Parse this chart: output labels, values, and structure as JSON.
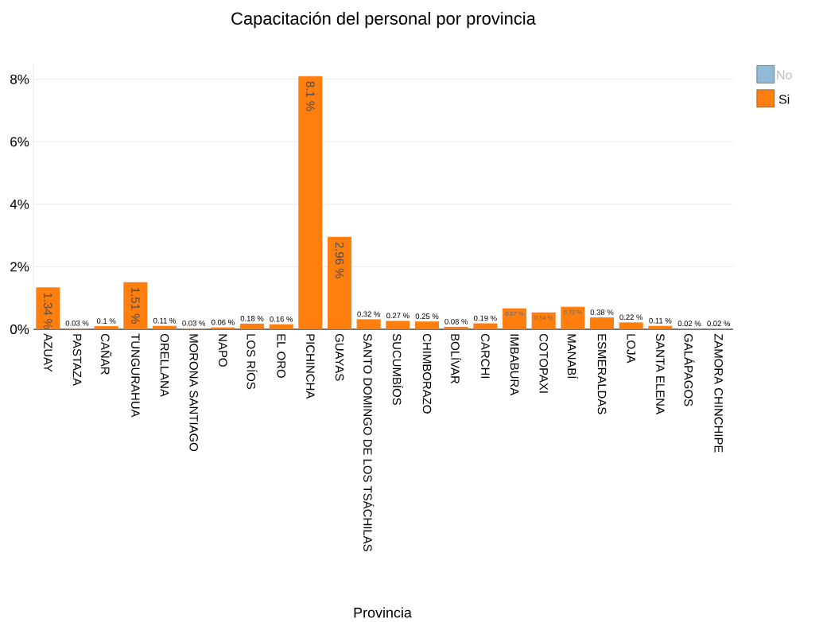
{
  "chart_data": {
    "type": "bar",
    "title": "Capacitación del personal por provincia",
    "xlabel": "Provincia",
    "categories": [
      "AZUAY",
      "PASTAZA",
      "CAÑAR",
      "TUNGURAHUA",
      "ORELLANA",
      "MORONA SANTIAGO",
      "NAPO",
      "LOS RÍOS",
      "EL ORO",
      "PICHINCHA",
      "GUAYAS",
      "SANTO DOMINGO DE LOS TSÁCHILAS",
      "SUCUMBÍOS",
      "CHIMBORAZO",
      "BOLÍVAR",
      "CARCHI",
      "IMBABURA",
      "COTOPAXI",
      "MANABÍ",
      "ESMERALDAS",
      "LOJA",
      "SANTA ELENA",
      "GALÁPAGOS",
      "ZAMORA CHINCHIPE"
    ],
    "series": [
      {
        "name": "No",
        "color": "#8fbbd9",
        "values": [
          null,
          null,
          null,
          null,
          null,
          null,
          null,
          null,
          null,
          null,
          null,
          null,
          null,
          null,
          null,
          null,
          null,
          null,
          null,
          null,
          null,
          null,
          null,
          null
        ]
      },
      {
        "name": "Si",
        "color": "#ff7f0e",
        "values": [
          1.34,
          0.03,
          0.1,
          1.51,
          0.11,
          0.03,
          0.06,
          0.18,
          0.16,
          8.1,
          2.96,
          0.32,
          0.27,
          0.25,
          0.08,
          0.19,
          0.67,
          0.54,
          0.72,
          0.38,
          0.22,
          0.11,
          0.02,
          0.02
        ],
        "value_labels": [
          "1.34 %",
          "0.03 %",
          "0.1 %",
          "1.51 %",
          "0.11 %",
          "0.03 %",
          "0.06 %",
          "0.18 %",
          "0.16 %",
          "8.1 %",
          "2.96 %",
          "0.32 %",
          "0.27 %",
          "0.25 %",
          "0.08 %",
          "0.19 %",
          "0.67 %",
          "0.54 %",
          "0.72 %",
          "0.38 %",
          "0.22 %",
          "0.11 %",
          "0.02 %",
          "0.02 %"
        ]
      }
    ],
    "ylim": [
      0,
      8.5
    ],
    "yticks": [
      {
        "value": 0,
        "label": "0%"
      },
      {
        "value": 2,
        "label": "2%"
      },
      {
        "value": 4,
        "label": "4%"
      },
      {
        "value": 6,
        "label": "6%"
      },
      {
        "value": 8,
        "label": "8%"
      }
    ],
    "grid": "y",
    "legend": "top right"
  }
}
